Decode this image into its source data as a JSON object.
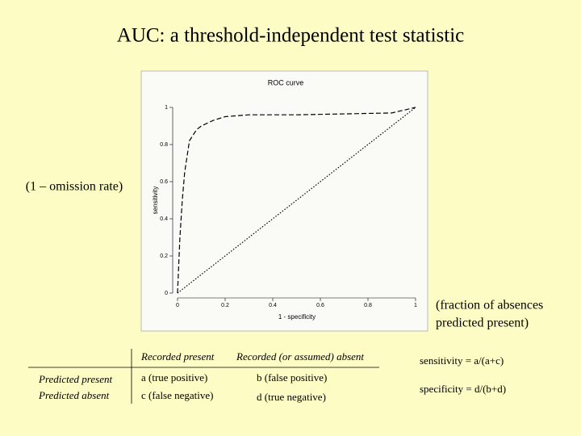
{
  "title": "AUC: a threshold-independent test statistic",
  "y_note": "(1 – omission rate)",
  "x_note": [
    "(fraction of absences",
    "predicted present)"
  ],
  "chart_data": {
    "type": "line",
    "title": "ROC curve",
    "xlabel": "1 - specificity",
    "ylabel": "sensitivity",
    "xlim": [
      0,
      1
    ],
    "ylim": [
      0,
      1
    ],
    "xticks": [
      0,
      0.2,
      0.4,
      0.6,
      0.8,
      1
    ],
    "yticks": [
      0,
      0.2,
      0.4,
      0.6,
      0.8,
      1
    ],
    "series": [
      {
        "color": "#000000",
        "style": "dashed",
        "x": [
          0,
          0.01,
          0.02,
          0.03,
          0.05,
          0.08,
          0.1,
          0.15,
          0.2,
          0.3,
          0.5,
          0.7,
          0.9,
          1
        ],
        "values": [
          0,
          0.3,
          0.5,
          0.65,
          0.82,
          0.88,
          0.9,
          0.93,
          0.95,
          0.96,
          0.96,
          0.965,
          0.97,
          1
        ]
      },
      {
        "color": "#000000",
        "style": "dotted",
        "x": [
          0,
          1
        ],
        "values": [
          0,
          1
        ]
      }
    ]
  },
  "table": {
    "columns": [
      "Recorded present",
      "Recorded (or assumed) absent"
    ],
    "rows": [
      {
        "label": "Predicted present",
        "cells": [
          "a (true positive)",
          "b (false positive)"
        ]
      },
      {
        "label": "Predicted absent",
        "cells": [
          "c (false negative)",
          "d (true negative)"
        ]
      }
    ]
  },
  "formulas": [
    "sensitivity = a/(a+c)",
    "specificity = d/(b+d)"
  ]
}
